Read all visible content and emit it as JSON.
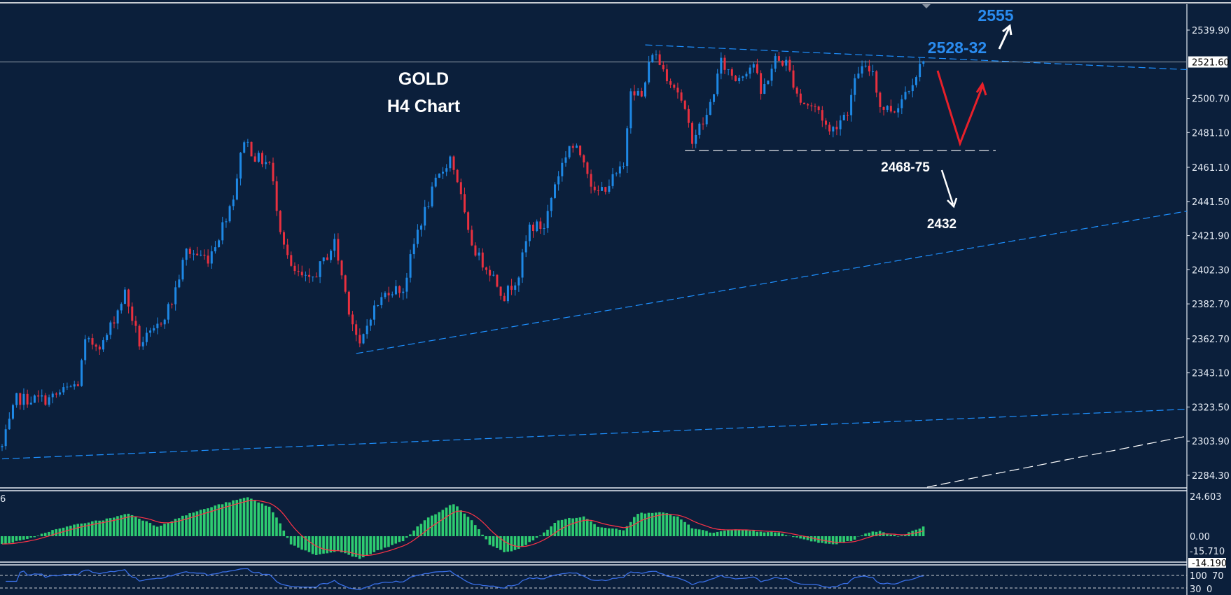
{
  "chart_data": {
    "type": "candlestick",
    "title": "GOLD",
    "subtitle": "H4 Chart",
    "colors": {
      "background": "#0b1f3b",
      "up": "#1e88e5",
      "down": "#e8303f",
      "macd_hist": "#2ecc71",
      "macd_signal": "#ff3347",
      "rsi": "#3a70e8",
      "trend_blue": "#1e90ff",
      "annotation_blue": "#2a8cf0"
    },
    "price_axis": {
      "ylim": [
        2284.3,
        2539.9
      ],
      "ticks": [
        "2539.90",
        "2500.70",
        "2481.10",
        "2461.10",
        "2441.50",
        "2421.90",
        "2402.30",
        "2382.70",
        "2362.70",
        "2343.10",
        "2323.50",
        "2303.90",
        "2284.30"
      ],
      "current_price": "2521.60"
    },
    "price_path": [
      [
        0,
        2300.4
      ],
      [
        4,
        2328
      ],
      [
        13,
        2328
      ],
      [
        21,
        2337
      ],
      [
        23,
        2360
      ],
      [
        28,
        2360
      ],
      [
        34,
        2389
      ],
      [
        38,
        2360
      ],
      [
        42,
        2366
      ],
      [
        47,
        2384
      ],
      [
        51,
        2413
      ],
      [
        57,
        2409
      ],
      [
        60,
        2422
      ],
      [
        64,
        2445
      ],
      [
        67,
        2478
      ],
      [
        70,
        2467
      ],
      [
        74,
        2463
      ],
      [
        77,
        2427
      ],
      [
        80,
        2402
      ],
      [
        85,
        2395
      ],
      [
        89,
        2407
      ],
      [
        92,
        2418
      ],
      [
        96,
        2380
      ],
      [
        99,
        2357
      ],
      [
        102,
        2377
      ],
      [
        107,
        2391
      ],
      [
        111,
        2391
      ],
      [
        115,
        2425
      ],
      [
        120,
        2452
      ],
      [
        124,
        2467
      ],
      [
        126,
        2454
      ],
      [
        129,
        2422
      ],
      [
        132,
        2409
      ],
      [
        135,
        2402
      ],
      [
        139,
        2387
      ],
      [
        143,
        2400
      ],
      [
        146,
        2427
      ],
      [
        150,
        2427
      ],
      [
        153,
        2452
      ],
      [
        157,
        2474
      ],
      [
        161,
        2467
      ],
      [
        164,
        2445
      ],
      [
        168,
        2452
      ],
      [
        172,
        2461
      ],
      [
        173,
        2485
      ],
      [
        174,
        2508
      ],
      [
        177,
        2501
      ],
      [
        180,
        2528
      ],
      [
        184,
        2514
      ],
      [
        187,
        2505
      ],
      [
        191,
        2478
      ],
      [
        195,
        2490
      ],
      [
        199,
        2521
      ],
      [
        203,
        2512
      ],
      [
        208,
        2521
      ],
      [
        210,
        2503
      ],
      [
        214,
        2523
      ],
      [
        217,
        2521
      ],
      [
        221,
        2499
      ],
      [
        226,
        2494
      ],
      [
        229,
        2481
      ],
      [
        234,
        2494
      ],
      [
        237,
        2517
      ],
      [
        241,
        2517
      ],
      [
        243,
        2496
      ],
      [
        247,
        2494
      ],
      [
        251,
        2508
      ],
      [
        255,
        2522
      ]
    ],
    "trendlines": [
      {
        "style": "dashed-blue",
        "from": [
          178,
          2531.4
        ],
        "to": [
          330,
          2517.0
        ]
      },
      {
        "style": "dashed-blue",
        "from": [
          98,
          2354.2
        ],
        "to": [
          330,
          2436.7
        ]
      },
      {
        "style": "dashed-blue",
        "from": [
          0,
          2293.7
        ],
        "to": [
          330,
          2322.4
        ]
      },
      {
        "style": "dashed-white",
        "from": [
          256,
          2277.5
        ],
        "to": [
          330,
          2307.6
        ]
      },
      {
        "style": "dashed-white-horizontal",
        "from": [
          189,
          2470.8
        ],
        "to": [
          275,
          2470.8
        ]
      }
    ],
    "annotations": {
      "title": "GOLD",
      "subtitle": "H4 Chart",
      "target_up": "2555",
      "resistance": "2528-32",
      "support": "2468-75",
      "target_down": "2432"
    },
    "macd": {
      "label": "6",
      "axis": {
        "top": "24.603",
        "zero": "0.00",
        "bottom_partial": "-15.710",
        "current": "-14.190"
      },
      "ylim": [
        -14.19,
        24.603
      ],
      "histogram_path": [
        [
          0,
          -5
        ],
        [
          7,
          -2
        ],
        [
          13,
          3
        ],
        [
          22,
          8
        ],
        [
          28,
          10
        ],
        [
          35,
          14
        ],
        [
          43,
          6
        ],
        [
          52,
          14
        ],
        [
          61,
          20
        ],
        [
          68,
          24
        ],
        [
          74,
          18
        ],
        [
          77,
          8
        ],
        [
          80,
          -5
        ],
        [
          87,
          -12
        ],
        [
          93,
          -9
        ],
        [
          99,
          -14
        ],
        [
          104,
          -9
        ],
        [
          111,
          -3
        ],
        [
          117,
          10
        ],
        [
          125,
          20
        ],
        [
          130,
          10
        ],
        [
          135,
          -5
        ],
        [
          139,
          -10
        ],
        [
          143,
          -8
        ],
        [
          150,
          2
        ],
        [
          154,
          10
        ],
        [
          161,
          12
        ],
        [
          165,
          6
        ],
        [
          172,
          4
        ],
        [
          176,
          14
        ],
        [
          182,
          15
        ],
        [
          187,
          12
        ],
        [
          191,
          5
        ],
        [
          197,
          2
        ],
        [
          202,
          4
        ],
        [
          209,
          3
        ],
        [
          215,
          2
        ],
        [
          220,
          -1
        ],
        [
          226,
          -4
        ],
        [
          230,
          -5
        ],
        [
          235,
          -3
        ],
        [
          239,
          2
        ],
        [
          243,
          3
        ],
        [
          248,
          0
        ],
        [
          252,
          3
        ],
        [
          255,
          6
        ]
      ]
    },
    "rsi": {
      "levels": [
        70,
        30
      ],
      "axis_labels": [
        "100",
        "70",
        "30",
        "0"
      ]
    }
  }
}
